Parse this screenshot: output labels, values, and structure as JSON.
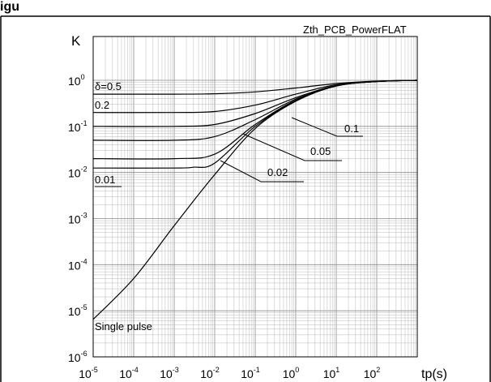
{
  "figure_caption": "igu",
  "chart_data": {
    "type": "line",
    "title": "Zth_PCB_PowerFLAT",
    "ylabel": "K",
    "xlabel": "tp(s)",
    "x_scale": "log",
    "y_scale": "log",
    "xlim": [
      1e-05,
      1000
    ],
    "ylim": [
      1e-06,
      1
    ],
    "grid": true,
    "x_ticks": [
      {
        "base": "10",
        "exp": "-5"
      },
      {
        "base": "10",
        "exp": "-4"
      },
      {
        "base": "10",
        "exp": "-3"
      },
      {
        "base": "10",
        "exp": "-2"
      },
      {
        "base": "10",
        "exp": "-1"
      },
      {
        "base": "10",
        "exp": "0"
      },
      {
        "base": "10",
        "exp": "1"
      },
      {
        "base": "10",
        "exp": "2"
      }
    ],
    "y_ticks": [
      {
        "base": "10",
        "exp": "0"
      },
      {
        "base": "10",
        "exp": "-1"
      },
      {
        "base": "10",
        "exp": "-2"
      },
      {
        "base": "10",
        "exp": "-3"
      },
      {
        "base": "10",
        "exp": "-4"
      },
      {
        "base": "10",
        "exp": "-5"
      },
      {
        "base": "10",
        "exp": "-6"
      }
    ],
    "series": [
      {
        "name": "δ=0.5",
        "x": [
          1e-05,
          0.001,
          0.01,
          0.1,
          1,
          10,
          100,
          1000
        ],
        "y": [
          0.5,
          0.5,
          0.51,
          0.56,
          0.68,
          0.85,
          0.96,
          1.0
        ]
      },
      {
        "name": "0.2",
        "x": [
          1e-05,
          0.001,
          0.01,
          0.1,
          1,
          10,
          100,
          1000
        ],
        "y": [
          0.2,
          0.2,
          0.21,
          0.29,
          0.5,
          0.8,
          0.95,
          1.0
        ]
      },
      {
        "name": "0.1",
        "x": [
          1e-05,
          0.001,
          0.01,
          0.1,
          1,
          10,
          100,
          1000
        ],
        "y": [
          0.1,
          0.1,
          0.11,
          0.19,
          0.42,
          0.77,
          0.95,
          1.0
        ]
      },
      {
        "name": "0.05",
        "x": [
          1e-05,
          0.001,
          0.01,
          0.1,
          1,
          10,
          100,
          1000
        ],
        "y": [
          0.05,
          0.05,
          0.06,
          0.14,
          0.39,
          0.76,
          0.94,
          1.0
        ]
      },
      {
        "name": "0.02",
        "x": [
          1e-05,
          0.001,
          0.01,
          0.1,
          1,
          10,
          100,
          1000
        ],
        "y": [
          0.02,
          0.02,
          0.025,
          0.11,
          0.37,
          0.75,
          0.94,
          1.0
        ]
      },
      {
        "name": "0.01",
        "x": [
          1e-05,
          0.001,
          0.003,
          0.01,
          0.1,
          1,
          10,
          100,
          1000
        ],
        "y": [
          0.0125,
          0.0125,
          0.013,
          0.016,
          0.1,
          0.36,
          0.75,
          0.94,
          1.0
        ]
      },
      {
        "name": "Single pulse",
        "x": [
          1e-05,
          0.0001,
          0.001,
          0.01,
          0.1,
          1,
          10,
          100,
          1000
        ],
        "y": [
          6.5e-06,
          5e-05,
          0.0007,
          0.009,
          0.09,
          0.35,
          0.75,
          0.94,
          1.0
        ]
      }
    ],
    "labels": [
      {
        "text": "δ=0.5",
        "series": "δ=0.5"
      },
      {
        "text": "0.2",
        "series": "0.2"
      },
      {
        "text": "0.1",
        "series": "0.1"
      },
      {
        "text": "0.05",
        "series": "0.05"
      },
      {
        "text": "0.02",
        "series": "0.02"
      },
      {
        "text": "0.01",
        "series": "0.01"
      },
      {
        "text": "Single pulse",
        "series": "Single pulse"
      }
    ]
  }
}
